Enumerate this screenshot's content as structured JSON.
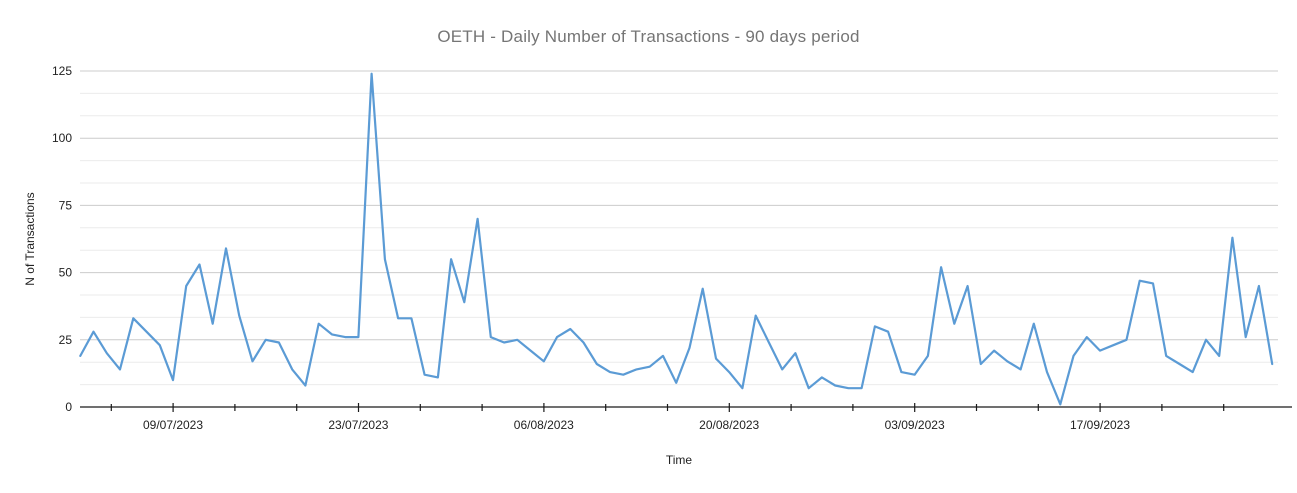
{
  "chart_data": {
    "type": "line",
    "title": "OETH - Daily Number of Transactions - 90 days period",
    "xlabel": "Time",
    "ylabel": "N of Transactions",
    "y_ticks": [
      0,
      25,
      50,
      75,
      100,
      125
    ],
    "ylim": [
      0,
      125
    ],
    "grid": "horizontal major gridlines with 2 minor gridlines between (thirds), no vertical gridlines",
    "legend": "none",
    "x_axis": {
      "unit": "day",
      "points_total": 91,
      "minor_tick_interval_days": 4.6667,
      "major_ticks": [
        {
          "day": 7,
          "label": "09/07/2023"
        },
        {
          "day": 21,
          "label": "23/07/2023"
        },
        {
          "day": 35,
          "label": "06/08/2023"
        },
        {
          "day": 49,
          "label": "20/08/2023"
        },
        {
          "day": 63,
          "label": "03/09/2023"
        },
        {
          "day": 77,
          "label": "17/09/2023"
        }
      ]
    },
    "values": [
      19,
      28,
      20,
      14,
      33,
      28,
      23,
      10,
      45,
      53,
      31,
      59,
      34,
      17,
      25,
      24,
      14,
      8,
      31,
      27,
      26,
      26,
      124,
      55,
      33,
      33,
      12,
      11,
      55,
      39,
      70,
      26,
      24,
      25,
      21,
      17,
      26,
      29,
      24,
      16,
      13,
      12,
      14,
      15,
      19,
      9,
      22,
      44,
      18,
      13,
      7,
      34,
      24,
      14,
      20,
      7,
      11,
      8,
      7,
      7,
      30,
      28,
      13,
      12,
      19,
      52,
      31,
      45,
      16,
      21,
      17,
      14,
      31,
      13,
      1,
      19,
      26,
      21,
      23,
      25,
      47,
      46,
      19,
      16,
      13,
      25,
      19,
      63,
      26,
      45,
      16
    ],
    "colors": {
      "line": "#5b9bd5",
      "title_text": "#757575",
      "axis_text": "#222222",
      "axis_line": "#1a1a1a",
      "major_gridline": "#cccccc",
      "minor_gridline": "#ebebeb",
      "background": "#ffffff"
    }
  }
}
